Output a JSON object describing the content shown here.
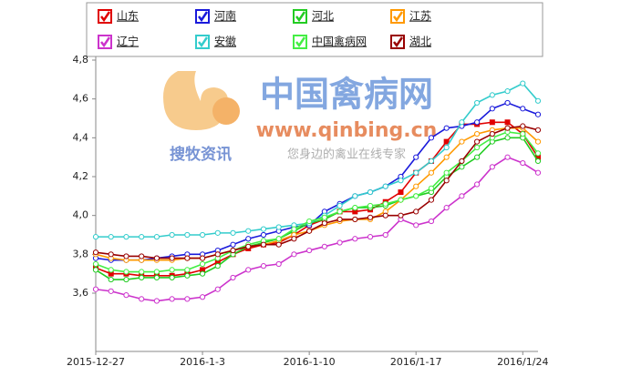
{
  "chart_data": {
    "type": "line",
    "annotations": [
      "中国禽病网",
      "www.qinbing.cn",
      "搜牧资讯",
      "您身边的禽业在线专家"
    ],
    "categories": [
      "2015-12-27",
      null,
      null,
      null,
      null,
      null,
      null,
      "2016-1-3",
      null,
      null,
      null,
      null,
      null,
      null,
      "2016-1-10",
      null,
      null,
      null,
      null,
      null,
      null,
      "2016/1-17",
      null,
      null,
      null,
      null,
      null,
      null,
      "2016/1/24",
      null
    ],
    "ylim": [
      3.3,
      4.8
    ],
    "yticks": [
      {
        "value": 3.6,
        "label": "3,6"
      },
      {
        "value": 3.8,
        "label": "3,8"
      },
      {
        "value": 4.0,
        "label": "4,0"
      },
      {
        "value": 4.2,
        "label": "4,2"
      },
      {
        "value": 4.4,
        "label": "4,4"
      },
      {
        "value": 4.6,
        "label": "4,6"
      },
      {
        "value": 4.8,
        "label": "4,8"
      }
    ],
    "grid": false,
    "series": [
      {
        "name": "山东",
        "color": "#e00000",
        "marker": "square",
        "values": [
          3.73,
          3.7,
          3.7,
          3.69,
          3.69,
          3.69,
          3.7,
          3.72,
          3.76,
          3.8,
          3.83,
          3.85,
          3.86,
          3.9,
          3.95,
          3.98,
          4.02,
          4.02,
          4.03,
          4.07,
          4.12,
          4.22,
          4.28,
          4.38,
          4.47,
          4.47,
          4.48,
          4.48,
          4.42,
          4.3
        ]
      },
      {
        "name": "河南",
        "color": "#1a1adb",
        "marker": "circle",
        "values": [
          3.78,
          3.77,
          3.77,
          3.77,
          3.78,
          3.79,
          3.8,
          3.8,
          3.82,
          3.85,
          3.88,
          3.9,
          3.92,
          3.94,
          3.95,
          4.02,
          4.06,
          4.1,
          4.12,
          4.15,
          4.2,
          4.3,
          4.4,
          4.45,
          4.46,
          4.48,
          4.55,
          4.58,
          4.55,
          4.52
        ]
      },
      {
        "name": "河北",
        "color": "#22cc22",
        "marker": "circle",
        "values": [
          3.72,
          3.67,
          3.67,
          3.68,
          3.68,
          3.68,
          3.69,
          3.7,
          3.74,
          3.8,
          3.84,
          3.86,
          3.88,
          3.92,
          3.96,
          3.98,
          4.02,
          4.04,
          4.04,
          4.05,
          4.08,
          4.1,
          4.12,
          4.2,
          4.25,
          4.3,
          4.38,
          4.4,
          4.4,
          4.28
        ]
      },
      {
        "name": "江苏",
        "color": "#ff9900",
        "marker": "circle",
        "values": [
          3.8,
          3.78,
          3.77,
          3.77,
          3.77,
          3.77,
          3.78,
          3.78,
          3.8,
          3.82,
          3.84,
          3.85,
          3.87,
          3.9,
          3.92,
          3.95,
          3.97,
          3.98,
          3.98,
          4.02,
          4.08,
          4.15,
          4.22,
          4.3,
          4.38,
          4.42,
          4.44,
          4.45,
          4.45,
          4.38
        ]
      },
      {
        "name": "辽宁",
        "color": "#cc33cc",
        "marker": "circle",
        "values": [
          3.62,
          3.61,
          3.59,
          3.57,
          3.56,
          3.57,
          3.57,
          3.58,
          3.62,
          3.68,
          3.72,
          3.74,
          3.75,
          3.8,
          3.82,
          3.84,
          3.86,
          3.88,
          3.89,
          3.9,
          3.98,
          3.95,
          3.97,
          4.04,
          4.1,
          4.16,
          4.25,
          4.3,
          4.27,
          4.22
        ]
      },
      {
        "name": "安徽",
        "color": "#33cccc",
        "marker": "circle",
        "values": [
          3.89,
          3.89,
          3.89,
          3.89,
          3.89,
          3.9,
          3.9,
          3.9,
          3.91,
          3.91,
          3.92,
          3.93,
          3.94,
          3.95,
          3.96,
          4.0,
          4.05,
          4.1,
          4.12,
          4.15,
          4.18,
          4.22,
          4.28,
          4.35,
          4.48,
          4.58,
          4.62,
          4.64,
          4.68,
          4.59
        ]
      },
      {
        "name": "中国禽病网",
        "color": "#44ee44",
        "marker": "circle",
        "values": [
          3.75,
          3.72,
          3.71,
          3.71,
          3.71,
          3.72,
          3.72,
          3.75,
          3.78,
          3.82,
          3.85,
          3.87,
          3.88,
          3.93,
          3.97,
          3.99,
          4.02,
          4.04,
          4.05,
          4.06,
          4.08,
          4.1,
          4.14,
          4.22,
          4.28,
          4.35,
          4.4,
          4.43,
          4.42,
          4.32
        ]
      },
      {
        "name": "湖北",
        "color": "#990000",
        "marker": "circle",
        "values": [
          3.81,
          3.8,
          3.79,
          3.79,
          3.78,
          3.78,
          3.78,
          3.78,
          3.8,
          3.82,
          3.84,
          3.85,
          3.85,
          3.88,
          3.92,
          3.96,
          3.98,
          3.98,
          3.99,
          4.0,
          4.0,
          4.02,
          4.08,
          4.18,
          4.28,
          4.38,
          4.42,
          4.45,
          4.46,
          4.44
        ]
      }
    ]
  }
}
